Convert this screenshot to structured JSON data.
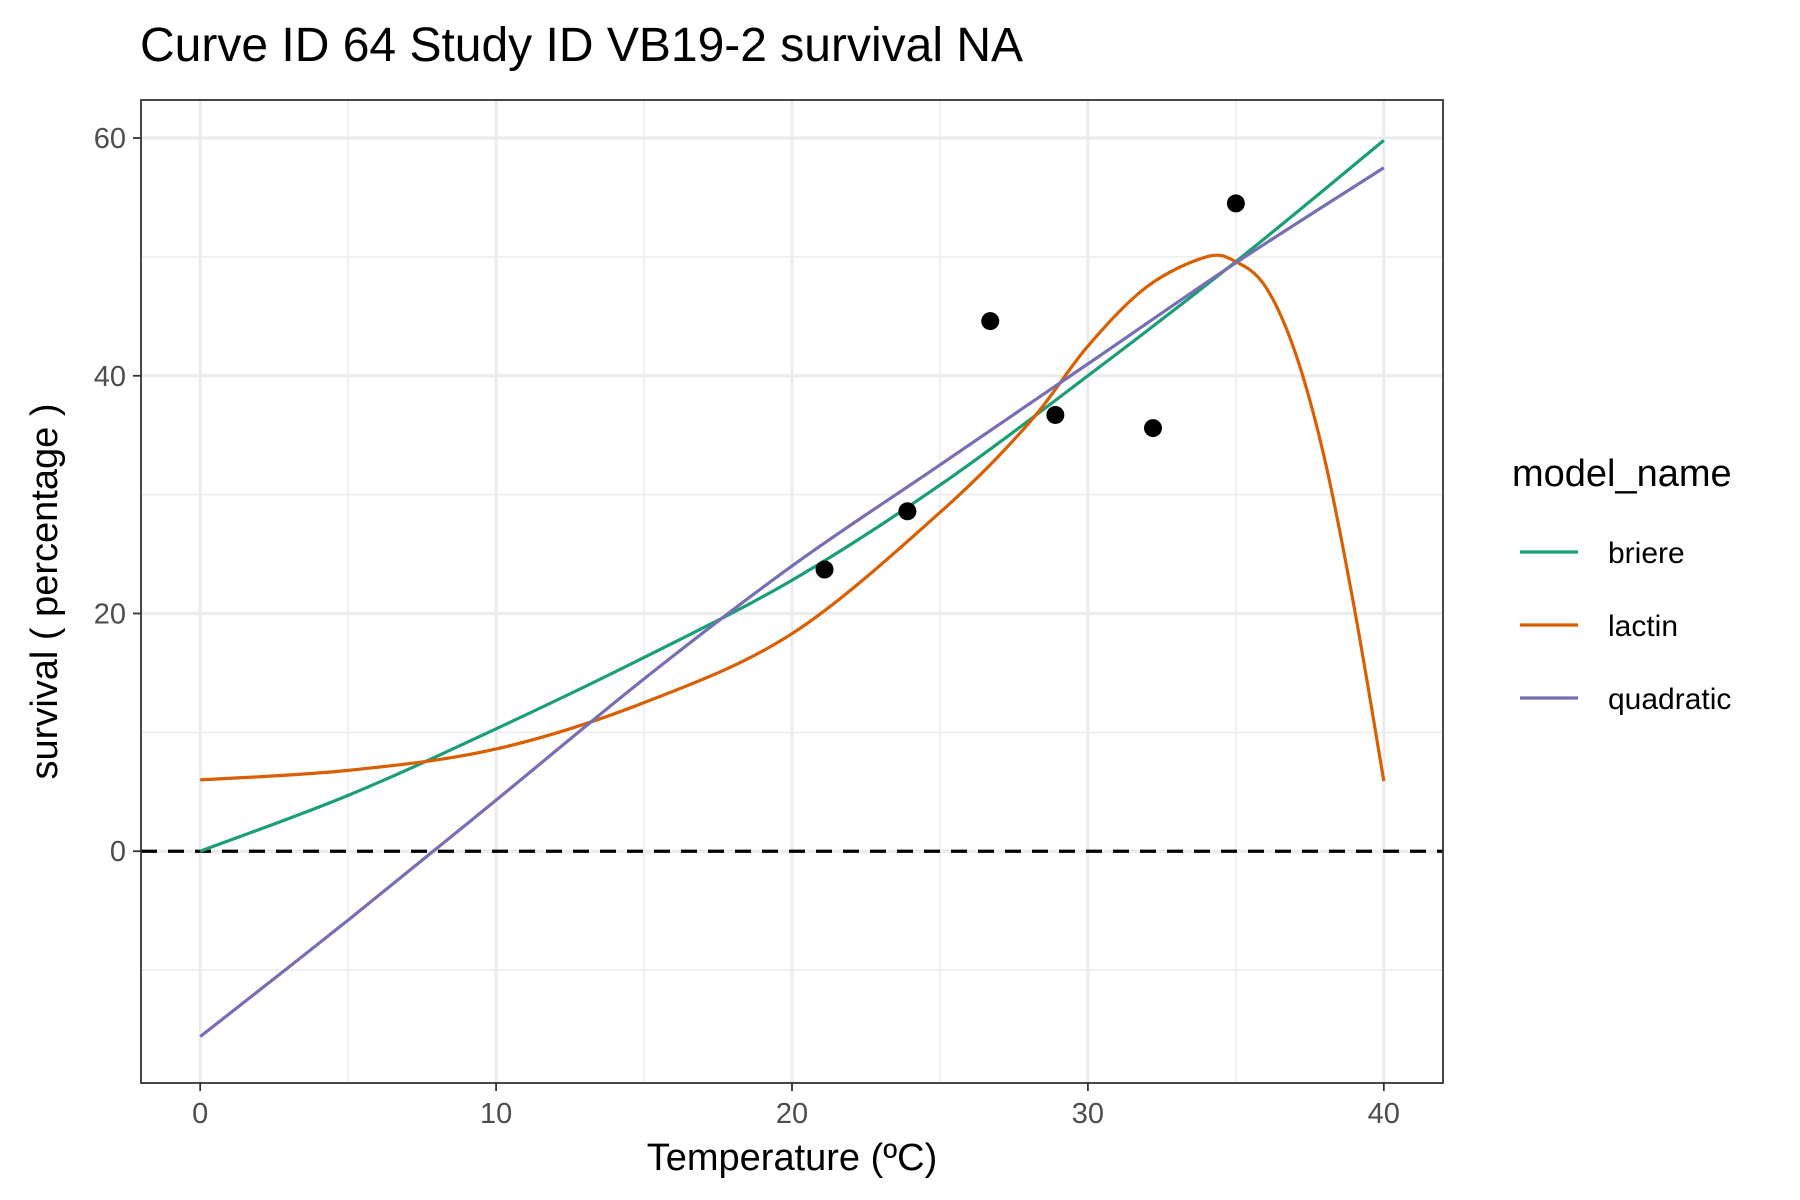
{
  "chart_data": {
    "type": "line",
    "title": "Curve ID 64 Study ID VB19-2 survival NA",
    "xlabel": "Temperature (ºC)",
    "ylabel": "survival ( percentage )",
    "xlim": [
      -2,
      42
    ],
    "ylim": [
      -19.5,
      63.2
    ],
    "x_ticks": [
      0,
      10,
      20,
      30,
      40
    ],
    "y_ticks": [
      0,
      20,
      40,
      60
    ],
    "x_minor": [
      5,
      15,
      25,
      35
    ],
    "y_minor": [
      -10,
      10,
      30,
      50
    ],
    "grid": true,
    "reference_line": {
      "y": 0,
      "style": "dashed",
      "color": "#000000"
    },
    "legend": {
      "title": "model_name",
      "position": "right"
    },
    "series": [
      {
        "name": "briere",
        "color": "#1b9e77",
        "points": [
          [
            0,
            0
          ],
          [
            5,
            4.7
          ],
          [
            10,
            10.3
          ],
          [
            15,
            16.3
          ],
          [
            20,
            22.8
          ],
          [
            25,
            30.8
          ],
          [
            30,
            40.0
          ],
          [
            35,
            49.6
          ],
          [
            40,
            59.8
          ]
        ]
      },
      {
        "name": "lactin",
        "color": "#d95f02",
        "points": [
          [
            0,
            6.0
          ],
          [
            5,
            6.8
          ],
          [
            10,
            8.6
          ],
          [
            15,
            12.5
          ],
          [
            20,
            18.3
          ],
          [
            25,
            28.5
          ],
          [
            28,
            36.0
          ],
          [
            30,
            42.5
          ],
          [
            32,
            47.5
          ],
          [
            34,
            50.0
          ],
          [
            35,
            49.6
          ],
          [
            36,
            47.5
          ],
          [
            37,
            42.0
          ],
          [
            38,
            33.0
          ],
          [
            39,
            20.5
          ],
          [
            40,
            5.9
          ]
        ]
      },
      {
        "name": "quadratic",
        "color": "#7570b3",
        "points": [
          [
            0,
            -15.6
          ],
          [
            5,
            -5.8
          ],
          [
            10,
            4.3
          ],
          [
            15,
            14.5
          ],
          [
            20,
            24.0
          ],
          [
            25,
            32.5
          ],
          [
            30,
            41.0
          ],
          [
            35,
            49.5
          ],
          [
            40,
            57.5
          ]
        ]
      }
    ],
    "observations": {
      "color": "#000000",
      "points": [
        [
          21.1,
          23.7
        ],
        [
          23.9,
          28.6
        ],
        [
          26.7,
          44.6
        ],
        [
          28.9,
          36.7
        ],
        [
          32.2,
          35.6
        ],
        [
          35.0,
          54.5
        ]
      ]
    }
  }
}
